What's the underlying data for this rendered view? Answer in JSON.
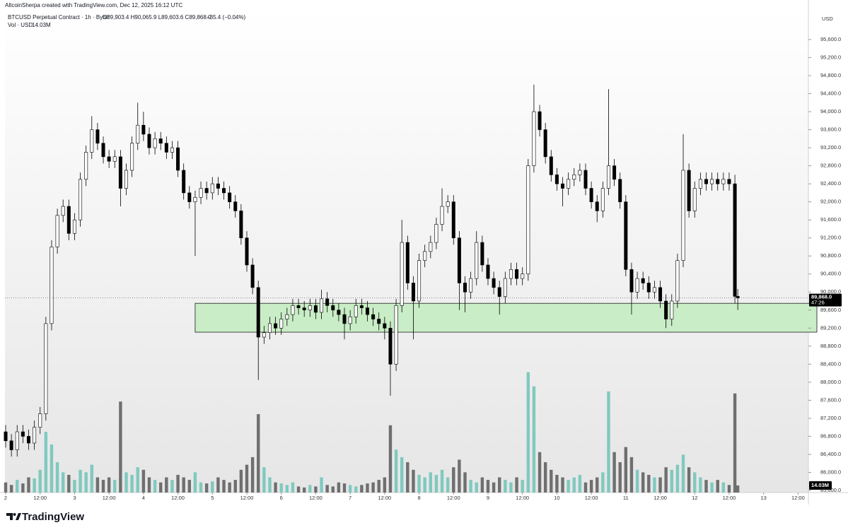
{
  "chart_data": {
    "type": "candlestick",
    "header": "AltcoinSherpa created with TradingView.com, Dec 12, 2025 16:12 UTC",
    "symbol": "BTCUSD Perpetual Contract · 1h · Bybit",
    "ohlc": "O89,903.4 H90,065.9 L89,603.6 C89,868.0",
    "change": "−35.4 (−0.04%)",
    "volume_title": "Vol · USD",
    "volume_value": "14.03M",
    "currency": "USD",
    "last_price_label": "89,868.0",
    "countdown": "47:26",
    "logo": "TradingView",
    "x": [
      0,
      2,
      4,
      6,
      8,
      10,
      12,
      14,
      16,
      18,
      20,
      22,
      24,
      26,
      28,
      30,
      32,
      34,
      36,
      38,
      40,
      42,
      44,
      46,
      48,
      50,
      52,
      54,
      56,
      58,
      60,
      62,
      64,
      66,
      68,
      70,
      72,
      74,
      76,
      78,
      80,
      82,
      84,
      86,
      88,
      90,
      92,
      94,
      96,
      98,
      100,
      102,
      104,
      106,
      108,
      110,
      112,
      114,
      116,
      118,
      120,
      122,
      124,
      126,
      128,
      130,
      132,
      134,
      136,
      138,
      140,
      142,
      144,
      146,
      148,
      150,
      152,
      154,
      156,
      158,
      160,
      162,
      164,
      166,
      168,
      170,
      172,
      174,
      176,
      178,
      180,
      182,
      184,
      186,
      188,
      190,
      192,
      194,
      196,
      198,
      200,
      202,
      204,
      206,
      208,
      210,
      212,
      214,
      216,
      218,
      220,
      222,
      224,
      226,
      228,
      230,
      232,
      234,
      236,
      238,
      240,
      242,
      244,
      246,
      248,
      250,
      252,
      254,
      255
    ],
    "open": [
      86900,
      86700,
      86500,
      86900,
      86800,
      86650,
      87000,
      87300,
      89300,
      91000,
      91700,
      91900,
      91300,
      91600,
      92500,
      93100,
      93600,
      93300,
      93000,
      92900,
      93000,
      92300,
      92700,
      93300,
      93700,
      93500,
      93200,
      93400,
      93300,
      93100,
      93200,
      92700,
      92200,
      92000,
      92100,
      92300,
      92200,
      92400,
      92300,
      92200,
      92000,
      91800,
      91200,
      90600,
      90100,
      89000,
      89100,
      89300,
      89200,
      89400,
      89500,
      89700,
      89650,
      89600,
      89700,
      89550,
      89850,
      89700,
      89600,
      89500,
      89300,
      89450,
      89700,
      89650,
      89500,
      89400,
      89300,
      89200,
      88400,
      89700,
      91100,
      90200,
      89800,
      90700,
      90900,
      91100,
      91500,
      91900,
      92000,
      91200,
      90200,
      90000,
      90300,
      91100,
      90600,
      90300,
      90100,
      89900,
      90300,
      90500,
      90300,
      90400,
      92800,
      94000,
      93600,
      93000,
      92600,
      92400,
      92300,
      92500,
      92600,
      92700,
      92300,
      92000,
      91800,
      92300,
      92800,
      92500,
      92000,
      90500,
      90000,
      90300,
      90200,
      90000,
      90100,
      89800,
      89400,
      89800,
      90700,
      92700,
      91800,
      92300,
      92500,
      92400,
      92500,
      92400,
      92500,
      92400,
      89903.4
    ],
    "high": [
      87050,
      86850,
      87050,
      87050,
      86950,
      87150,
      87450,
      89450,
      91150,
      91850,
      92050,
      92050,
      91750,
      92650,
      93250,
      93900,
      93750,
      93450,
      93150,
      93150,
      93150,
      92850,
      93450,
      94200,
      94000,
      93650,
      93550,
      93550,
      93450,
      93350,
      93350,
      92850,
      92350,
      92250,
      92450,
      92450,
      92550,
      92550,
      92450,
      92350,
      92150,
      91950,
      91350,
      90750,
      90250,
      89250,
      89450,
      89450,
      89550,
      89650,
      89850,
      89850,
      89800,
      89850,
      89850,
      90050,
      90000,
      89850,
      89750,
      89650,
      89600,
      89850,
      89850,
      89800,
      89650,
      89550,
      89450,
      89350,
      89850,
      91600,
      91250,
      90350,
      90850,
      91050,
      91250,
      91650,
      92300,
      92150,
      92150,
      91350,
      90350,
      90450,
      91350,
      91250,
      90750,
      90450,
      90250,
      90450,
      90650,
      90650,
      90550,
      92950,
      94600,
      94150,
      93750,
      93150,
      92750,
      92550,
      92650,
      92750,
      92850,
      92850,
      92450,
      92150,
      92450,
      94500,
      92950,
      92650,
      92150,
      90650,
      90450,
      90450,
      90350,
      90250,
      90250,
      89950,
      89950,
      90850,
      93500,
      92850,
      92450,
      92650,
      92650,
      92650,
      92650,
      92650,
      92650,
      92600,
      90065.9
    ],
    "low": [
      86550,
      86350,
      86350,
      86650,
      86500,
      86500,
      86850,
      87150,
      89150,
      90850,
      91550,
      91150,
      91150,
      91450,
      92350,
      92950,
      93150,
      92850,
      92750,
      92750,
      91900,
      92150,
      92550,
      93150,
      93350,
      93050,
      93050,
      93150,
      92950,
      92950,
      92550,
      92050,
      91850,
      90800,
      91950,
      92050,
      92050,
      92150,
      92050,
      91850,
      91650,
      91050,
      90450,
      89950,
      88050,
      88850,
      88950,
      89050,
      89050,
      89250,
      89350,
      89500,
      89450,
      89450,
      89400,
      89400,
      89550,
      89450,
      89350,
      88950,
      89150,
      89300,
      89500,
      89350,
      89250,
      89150,
      88950,
      87700,
      88250,
      89550,
      90050,
      88950,
      89650,
      90550,
      90750,
      90950,
      91350,
      91750,
      91050,
      89600,
      89550,
      89850,
      90150,
      90450,
      90150,
      89950,
      89500,
      89750,
      90150,
      90150,
      90150,
      90250,
      92650,
      93450,
      92850,
      92450,
      92250,
      91900,
      92150,
      92350,
      92450,
      92150,
      91850,
      91550,
      91650,
      92150,
      92350,
      91850,
      90350,
      89500,
      89850,
      90050,
      89850,
      89850,
      89650,
      89200,
      89250,
      89650,
      90550,
      91650,
      91650,
      92150,
      92250,
      92250,
      92250,
      92250,
      92250,
      89750,
      89603.6
    ],
    "close": [
      86700,
      86500,
      86900,
      86800,
      86650,
      87000,
      87300,
      89300,
      91000,
      91700,
      91900,
      91300,
      91600,
      92500,
      93100,
      93600,
      93300,
      93000,
      92900,
      93000,
      92300,
      92700,
      93300,
      93700,
      93500,
      93200,
      93400,
      93300,
      93100,
      93200,
      92700,
      92200,
      92000,
      92100,
      92300,
      92200,
      92400,
      92300,
      92200,
      92000,
      91800,
      91200,
      90600,
      90100,
      89000,
      89100,
      89300,
      89200,
      89400,
      89500,
      89700,
      89650,
      89600,
      89700,
      89550,
      89850,
      89700,
      89600,
      89500,
      89300,
      89450,
      89700,
      89650,
      89500,
      89400,
      89300,
      89200,
      88400,
      89700,
      91100,
      90200,
      89800,
      90700,
      90900,
      91100,
      91500,
      91900,
      92000,
      91200,
      90200,
      90000,
      90300,
      91100,
      90600,
      90300,
      90100,
      89900,
      90300,
      90500,
      90300,
      90400,
      92800,
      94000,
      93600,
      93000,
      92600,
      92400,
      92300,
      92500,
      92600,
      92700,
      92300,
      92000,
      91800,
      92300,
      92800,
      92500,
      92000,
      90500,
      90000,
      90300,
      90200,
      90000,
      90100,
      89800,
      89400,
      89800,
      90700,
      92700,
      91800,
      92300,
      92500,
      92400,
      92500,
      92400,
      92500,
      92400,
      89903.4,
      89868
    ],
    "volume": [
      20,
      15,
      25,
      18,
      30,
      28,
      45,
      120,
      95,
      60,
      40,
      35,
      25,
      45,
      40,
      55,
      30,
      25,
      30,
      25,
      180,
      40,
      35,
      50,
      45,
      30,
      25,
      20,
      30,
      25,
      35,
      30,
      25,
      40,
      20,
      18,
      22,
      30,
      25,
      20,
      25,
      45,
      55,
      70,
      155,
      50,
      30,
      20,
      18,
      15,
      20,
      12,
      10,
      15,
      12,
      30,
      15,
      12,
      20,
      18,
      15,
      12,
      15,
      18,
      20,
      25,
      30,
      133,
      85,
      70,
      60,
      45,
      35,
      30,
      40,
      35,
      45,
      30,
      50,
      65,
      40,
      25,
      20,
      30,
      25,
      20,
      30,
      25,
      20,
      30,
      25,
      238,
      210,
      80,
      60,
      45,
      35,
      30,
      25,
      30,
      35,
      20,
      25,
      30,
      40,
      200,
      80,
      60,
      90,
      70,
      45,
      40,
      35,
      30,
      30,
      50,
      45,
      55,
      75,
      50,
      40,
      30,
      25,
      20,
      25,
      20,
      15,
      196,
      14.03
    ],
    "xlim": [
      -0.25,
      279.6
    ],
    "ylim": [
      85553,
      96320
    ],
    "volume_lim": [
      0,
      960
    ],
    "xticks": [
      {
        "value": 0,
        "label": "2"
      },
      {
        "value": 12,
        "label": "12:00"
      },
      {
        "value": 24,
        "label": "3"
      },
      {
        "value": 36,
        "label": "12:00"
      },
      {
        "value": 48,
        "label": "4"
      },
      {
        "value": 60,
        "label": "12:00"
      },
      {
        "value": 72,
        "label": "5"
      },
      {
        "value": 84,
        "label": "12:00"
      },
      {
        "value": 96,
        "label": "6"
      },
      {
        "value": 108,
        "label": "12:00"
      },
      {
        "value": 120,
        "label": "7"
      },
      {
        "value": 132,
        "label": "12:00"
      },
      {
        "value": 144,
        "label": "8"
      },
      {
        "value": 156,
        "label": "12:00"
      },
      {
        "value": 168,
        "label": "9"
      },
      {
        "value": 180,
        "label": "12:00"
      },
      {
        "value": 192,
        "label": "10"
      },
      {
        "value": 204,
        "label": "12:00"
      },
      {
        "value": 216,
        "label": "11"
      },
      {
        "value": 228,
        "label": "12:00"
      },
      {
        "value": 240,
        "label": "12"
      },
      {
        "value": 252,
        "label": "12:00"
      },
      {
        "value": 264,
        "label": "13"
      },
      {
        "value": 276,
        "label": "12:00"
      }
    ],
    "yticks": [
      {
        "value": 85600,
        "label": "85,600.0"
      },
      {
        "value": 86000,
        "label": "86,000.0"
      },
      {
        "value": 86400,
        "label": "86,400.0"
      },
      {
        "value": 86800,
        "label": "86,800.0"
      },
      {
        "value": 87200,
        "label": "87,200.0"
      },
      {
        "value": 87600,
        "label": "87,600.0"
      },
      {
        "value": 88000,
        "label": "88,000.0"
      },
      {
        "value": 88400,
        "label": "88,400.0"
      },
      {
        "value": 88800,
        "label": "88,800.0"
      },
      {
        "value": 89200,
        "label": "89,200.0"
      },
      {
        "value": 89600,
        "label": "89,600.0"
      },
      {
        "value": 90000,
        "label": "90,000.0"
      },
      {
        "value": 90400,
        "label": "90,400.0"
      },
      {
        "value": 90800,
        "label": "90,800.0"
      },
      {
        "value": 91200,
        "label": "91,200.0"
      },
      {
        "value": 91600,
        "label": "91,600.0"
      },
      {
        "value": 92000,
        "label": "92,000.0"
      },
      {
        "value": 92400,
        "label": "92,400.0"
      },
      {
        "value": 92800,
        "label": "92,800.0"
      },
      {
        "value": 93200,
        "label": "93,200.0"
      },
      {
        "value": 93600,
        "label": "93,600.0"
      },
      {
        "value": 94000,
        "label": "94,000.0"
      },
      {
        "value": 94400,
        "label": "94,400.0"
      },
      {
        "value": 94800,
        "label": "94,800.0"
      },
      {
        "value": 95200,
        "label": "95,200.0"
      },
      {
        "value": 95600,
        "label": "95,600.0"
      }
    ],
    "grid": false,
    "zone": {
      "x_start": 66,
      "top": 89750,
      "bottom": 89110,
      "color": "#c9edc6"
    },
    "up_color": "#ffffff",
    "down_color": "#000000",
    "wick_color": "#000000",
    "volume_up_color": "#80c9bf",
    "volume_down_color": "#6f6f6f"
  }
}
